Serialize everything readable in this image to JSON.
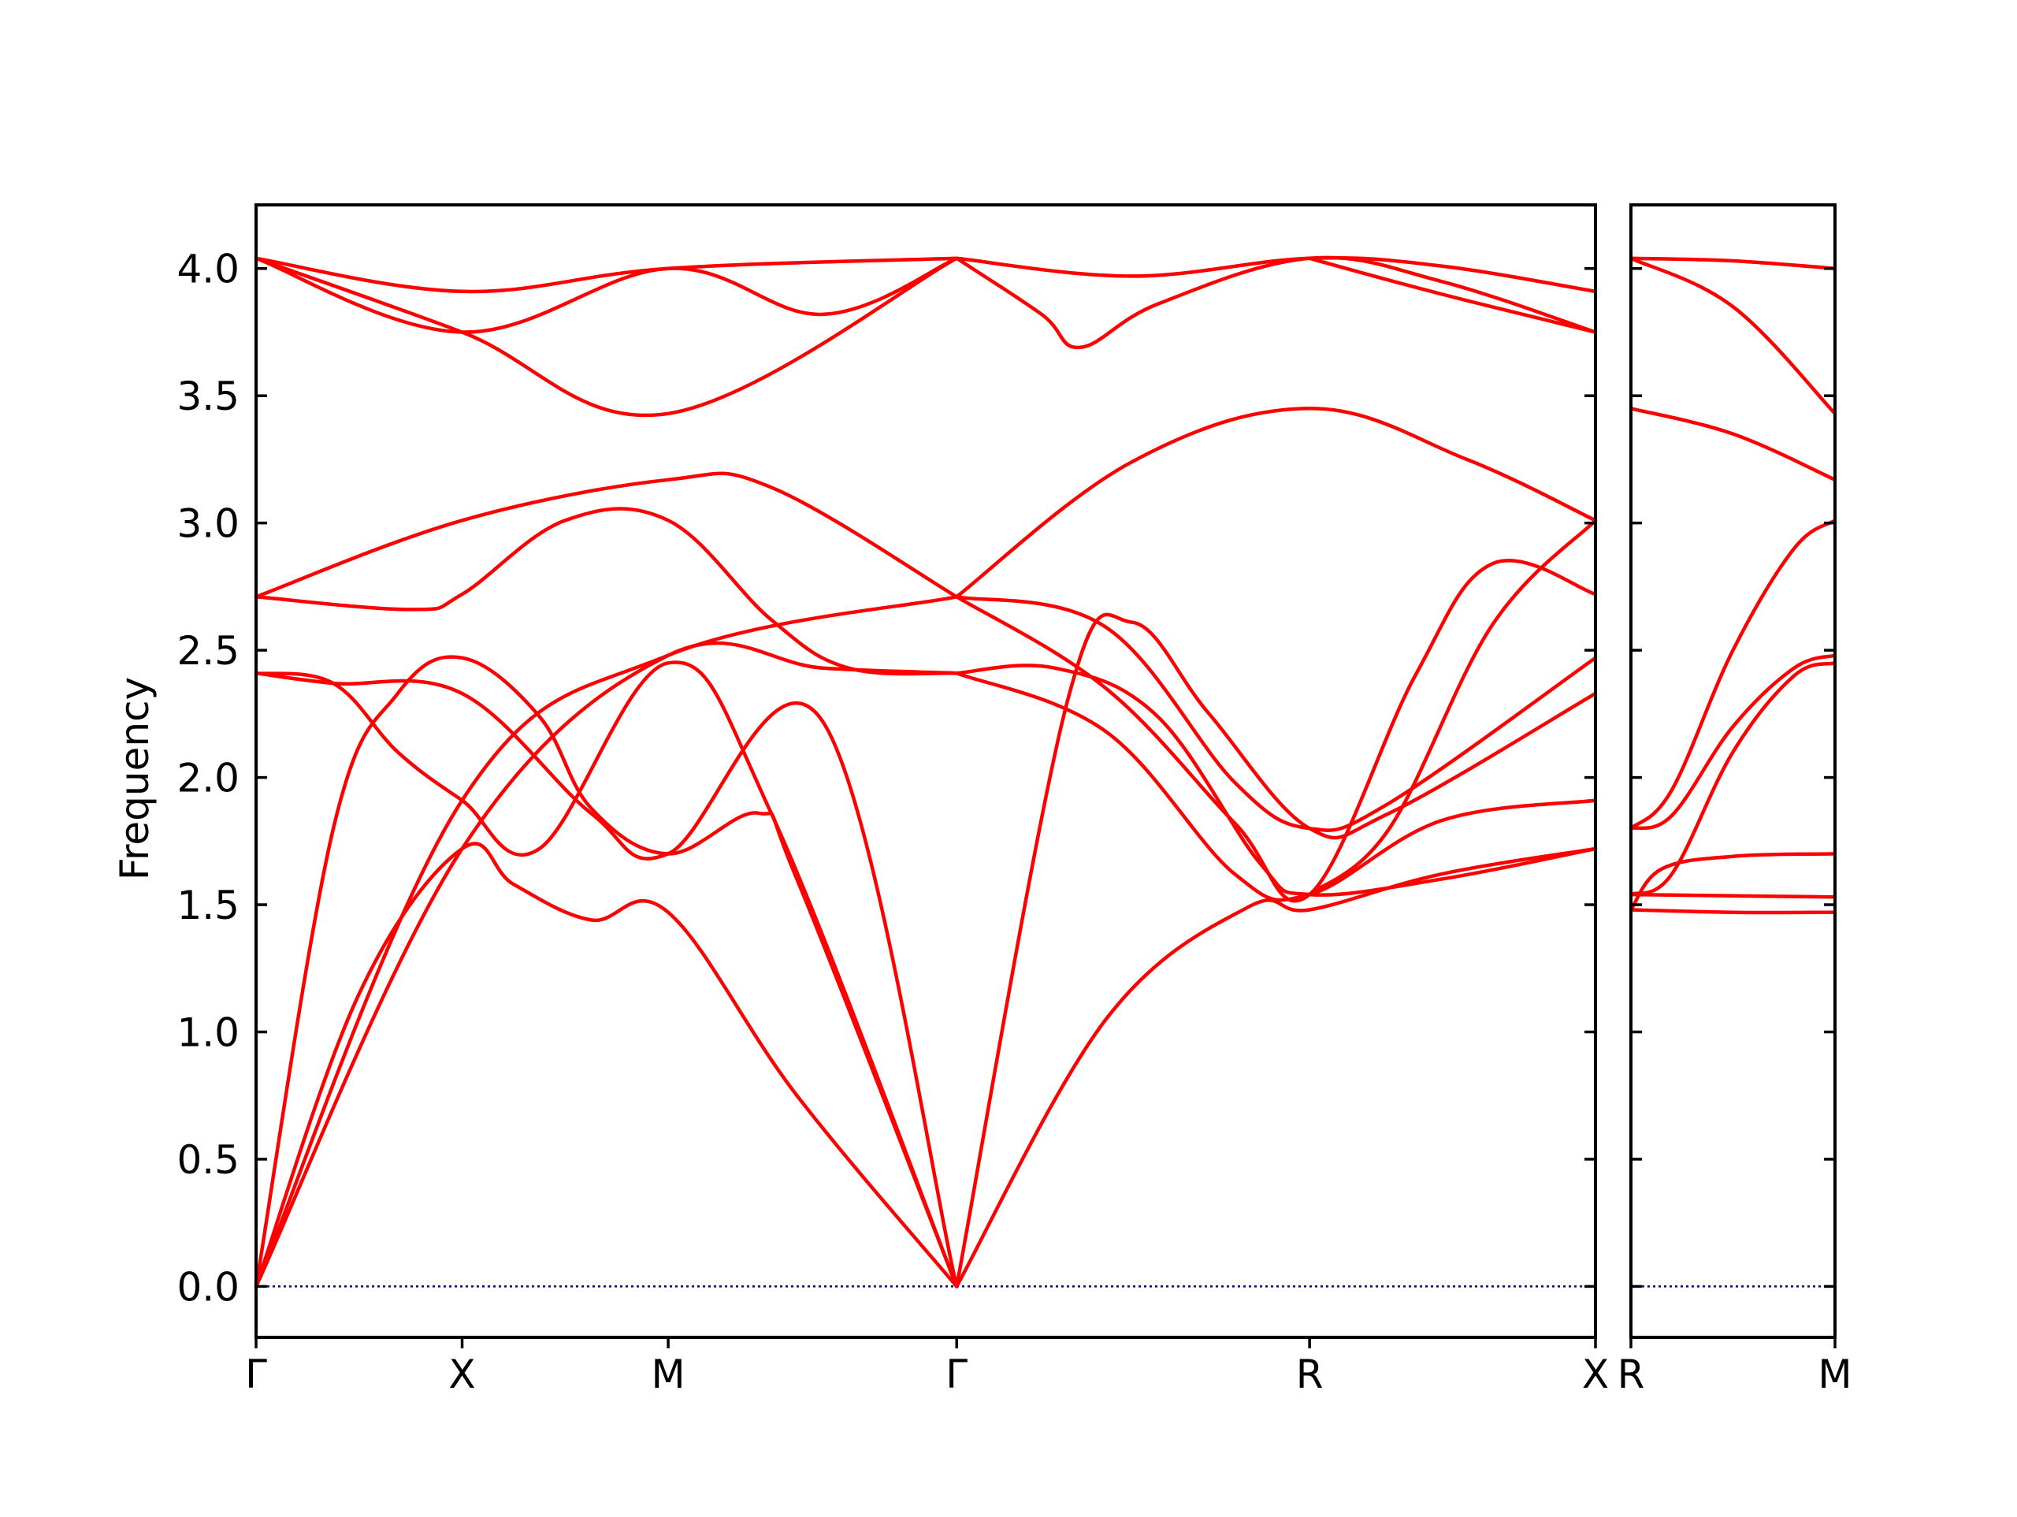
{
  "chart_data": {
    "type": "line",
    "ylabel": "Frequency",
    "ylim": [
      -0.2,
      4.25
    ],
    "yticks": [
      "0.0",
      "0.5",
      "1.0",
      "1.5",
      "2.0",
      "2.5",
      "3.0",
      "3.5",
      "4.0"
    ],
    "ytick_values": [
      0.0,
      0.5,
      1.0,
      1.5,
      2.0,
      2.5,
      3.0,
      3.5,
      4.0
    ],
    "band_color": "#ff0000",
    "zero_line_color": "#00008b",
    "panels": [
      {
        "name": "main",
        "x_range": [
          0,
          5.2
        ],
        "labels": [
          {
            "text": "Γ",
            "x": 0
          },
          {
            "text": "X",
            "x": 0.8
          },
          {
            "text": "M",
            "x": 1.6
          },
          {
            "text": "Γ",
            "x": 2.72
          },
          {
            "text": "R",
            "x": 4.09
          },
          {
            "text": "X",
            "x": 5.2
          }
        ],
        "series": [
          {
            "values": [
              [
                0,
                0.0
              ],
              [
                0.4,
                1.15
              ],
              [
                0.8,
                1.72
              ],
              [
                1.0,
                1.58
              ],
              [
                1.3,
                1.44
              ],
              [
                1.6,
                1.47
              ],
              [
                2.1,
                0.75
              ],
              [
                2.72,
                0.0
              ]
            ]
          },
          {
            "values": [
              [
                0,
                0.0
              ],
              [
                0.3,
                1.8
              ],
              [
                0.55,
                2.33
              ],
              [
                0.8,
                2.47
              ],
              [
                1.1,
                2.24
              ],
              [
                1.3,
                1.88
              ],
              [
                1.6,
                1.7
              ],
              [
                1.95,
                1.86
              ],
              [
                2.1,
                1.6
              ],
              [
                2.72,
                0.0
              ]
            ]
          },
          {
            "values": [
              [
                0,
                2.41
              ],
              [
                0.3,
                2.37
              ],
              [
                0.55,
                2.1
              ],
              [
                0.8,
                1.91
              ],
              [
                1.1,
                1.72
              ],
              [
                1.6,
                2.45
              ],
              [
                2.0,
                1.86
              ],
              [
                2.72,
                0.0
              ]
            ]
          },
          {
            "values": [
              [
                0,
                2.41
              ],
              [
                0.3,
                2.37
              ],
              [
                0.8,
                2.33
              ],
              [
                1.3,
                1.86
              ],
              [
                1.6,
                1.7
              ],
              [
                2.2,
                2.22
              ],
              [
                2.72,
                0.0
              ]
            ]
          },
          {
            "values": [
              [
                0,
                2.71
              ],
              [
                0.8,
                3.01
              ],
              [
                1.6,
                3.17
              ],
              [
                2.0,
                3.14
              ],
              [
                2.72,
                2.71
              ]
            ]
          },
          {
            "values": [
              [
                0,
                2.71
              ],
              [
                0.6,
                2.66
              ],
              [
                0.8,
                2.72
              ],
              [
                1.2,
                3.01
              ],
              [
                1.6,
                3.01
              ],
              [
                2.0,
                2.62
              ],
              [
                2.3,
                2.43
              ],
              [
                2.72,
                2.41
              ]
            ]
          },
          {
            "values": [
              [
                0,
                0.0
              ],
              [
                0.8,
                1.72
              ],
              [
                1.6,
                2.48
              ],
              [
                2.2,
                2.43
              ],
              [
                2.72,
                2.41
              ]
            ]
          },
          {
            "values": [
              [
                0,
                0.0
              ],
              [
                0.8,
                1.91
              ],
              [
                1.6,
                2.48
              ],
              [
                2.72,
                2.71
              ]
            ]
          },
          {
            "values": [
              [
                0,
                4.04
              ],
              [
                0.8,
                3.75
              ],
              [
                1.6,
                3.43
              ],
              [
                2.72,
                4.04
              ]
            ]
          },
          {
            "values": [
              [
                0,
                4.04
              ],
              [
                0.8,
                3.91
              ],
              [
                1.6,
                4.0
              ],
              [
                2.72,
                4.04
              ]
            ]
          },
          {
            "values": [
              [
                0,
                4.04
              ],
              [
                0.8,
                3.75
              ],
              [
                1.6,
                4.0
              ],
              [
                2.2,
                3.82
              ],
              [
                2.72,
                4.04
              ]
            ]
          },
          {
            "values": [
              [
                2.72,
                0.0
              ],
              [
                3.3,
                1.05
              ],
              [
                3.85,
                1.49
              ],
              [
                4.09,
                1.48
              ],
              [
                4.6,
                1.62
              ],
              [
                5.2,
                1.72
              ]
            ]
          },
          {
            "values": [
              [
                2.72,
                0.0
              ],
              [
                3.15,
                2.3
              ],
              [
                3.4,
                2.61
              ],
              [
                3.7,
                2.25
              ],
              [
                4.09,
                1.8
              ],
              [
                4.4,
                1.86
              ],
              [
                5.2,
                2.33
              ]
            ]
          },
          {
            "values": [
              [
                2.72,
                2.41
              ],
              [
                3.1,
                2.43
              ],
              [
                3.5,
                2.24
              ],
              [
                3.9,
                1.66
              ],
              [
                4.09,
                1.54
              ],
              [
                4.6,
                1.6
              ],
              [
                5.2,
                1.72
              ]
            ]
          },
          {
            "values": [
              [
                2.72,
                2.41
              ],
              [
                3.3,
                2.18
              ],
              [
                3.8,
                1.62
              ],
              [
                4.09,
                1.54
              ],
              [
                4.6,
                1.83
              ],
              [
                5.2,
                1.91
              ]
            ]
          },
          {
            "values": [
              [
                2.72,
                2.71
              ],
              [
                3.3,
                2.59
              ],
              [
                3.8,
                1.98
              ],
              [
                4.09,
                1.8
              ],
              [
                4.4,
                1.9
              ],
              [
                5.2,
                2.47
              ]
            ]
          },
          {
            "values": [
              [
                2.72,
                2.71
              ],
              [
                3.4,
                3.24
              ],
              [
                4.09,
                3.45
              ],
              [
                4.7,
                3.25
              ],
              [
                5.2,
                3.01
              ]
            ]
          },
          {
            "values": [
              [
                2.72,
                2.71
              ],
              [
                3.3,
                2.35
              ],
              [
                3.8,
                1.82
              ],
              [
                4.09,
                1.54
              ],
              [
                4.5,
                2.4
              ],
              [
                4.8,
                2.84
              ],
              [
                5.2,
                2.72
              ]
            ]
          },
          {
            "values": [
              [
                2.72,
                4.04
              ],
              [
                3.4,
                3.97
              ],
              [
                4.09,
                4.04
              ],
              [
                4.6,
                4.01
              ],
              [
                5.2,
                3.91
              ]
            ]
          },
          {
            "values": [
              [
                2.72,
                4.04
              ],
              [
                3.05,
                3.82
              ],
              [
                3.2,
                3.69
              ],
              [
                3.5,
                3.86
              ],
              [
                4.09,
                4.04
              ],
              [
                4.6,
                3.95
              ],
              [
                5.2,
                3.75
              ]
            ]
          },
          {
            "values": [
              [
                4.09,
                4.04
              ],
              [
                4.6,
                3.9
              ],
              [
                5.2,
                3.75
              ]
            ]
          },
          {
            "values": [
              [
                4.09,
                1.54
              ],
              [
                4.4,
                1.8
              ],
              [
                4.8,
                2.6
              ],
              [
                5.2,
                3.01
              ]
            ]
          }
        ]
      },
      {
        "name": "right",
        "x_range": [
          0,
          1
        ],
        "labels": [
          {
            "text": "R",
            "x": 0
          },
          {
            "text": "M",
            "x": 1
          }
        ],
        "series": [
          {
            "values": [
              [
                0,
                4.04
              ],
              [
                0.5,
                4.03
              ],
              [
                1,
                4.0
              ]
            ]
          },
          {
            "values": [
              [
                0,
                4.04
              ],
              [
                0.5,
                3.85
              ],
              [
                1,
                3.43
              ]
            ]
          },
          {
            "values": [
              [
                0,
                3.45
              ],
              [
                0.5,
                3.35
              ],
              [
                1,
                3.17
              ]
            ]
          },
          {
            "values": [
              [
                0,
                1.48
              ],
              [
                0.5,
                1.47
              ],
              [
                1,
                1.47
              ]
            ]
          },
          {
            "values": [
              [
                0,
                1.54
              ],
              [
                0.5,
                1.535
              ],
              [
                1,
                1.53
              ]
            ]
          },
          {
            "values": [
              [
                0,
                1.48
              ],
              [
                0.15,
                1.64
              ],
              [
                0.5,
                1.69
              ],
              [
                1,
                1.7
              ]
            ]
          },
          {
            "values": [
              [
                0,
                1.54
              ],
              [
                0.2,
                1.62
              ],
              [
                0.5,
                2.1
              ],
              [
                0.8,
                2.4
              ],
              [
                1,
                2.45
              ]
            ]
          },
          {
            "values": [
              [
                0,
                1.8
              ],
              [
                0.2,
                1.85
              ],
              [
                0.5,
                2.2
              ],
              [
                0.8,
                2.43
              ],
              [
                1,
                2.48
              ]
            ]
          },
          {
            "values": [
              [
                0,
                1.8
              ],
              [
                0.2,
                1.95
              ],
              [
                0.5,
                2.5
              ],
              [
                0.8,
                2.9
              ],
              [
                1,
                3.01
              ]
            ]
          }
        ]
      }
    ]
  }
}
